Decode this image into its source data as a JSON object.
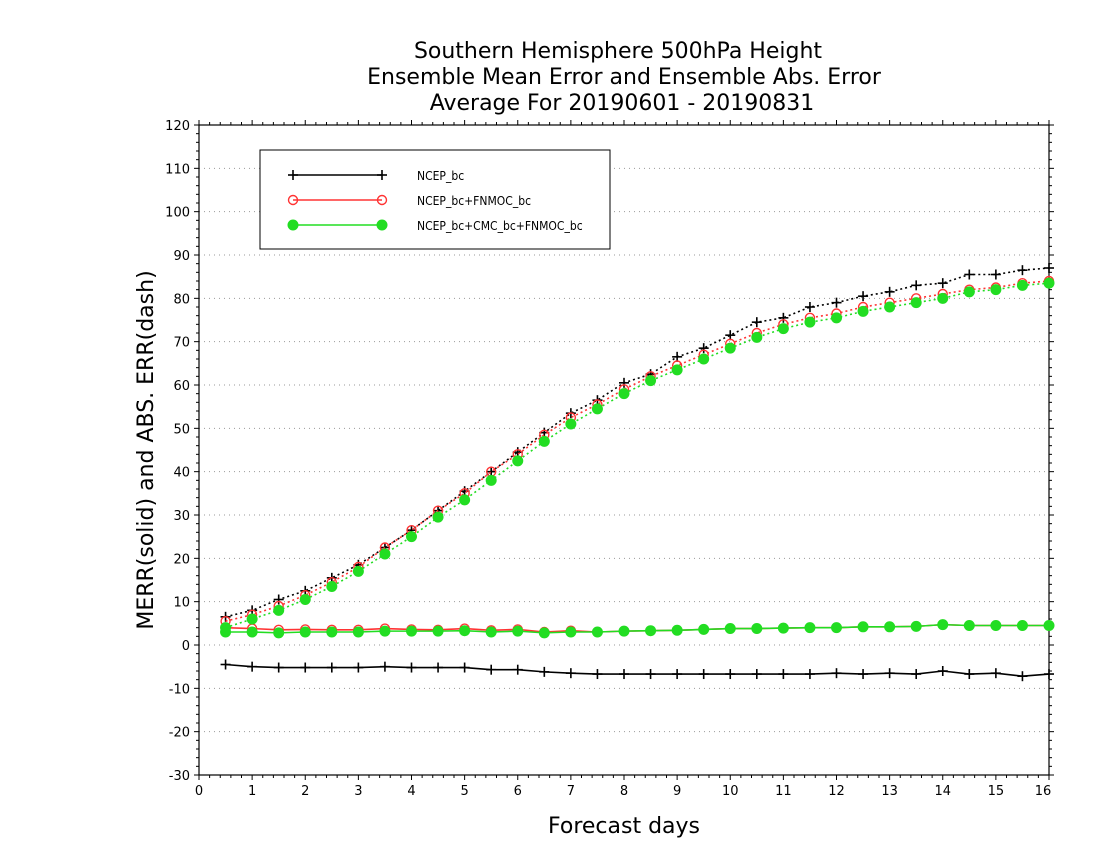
{
  "chart_data": {
    "type": "line",
    "title": [
      "Southern Hemisphere 500hPa Height",
      "Ensemble Mean Error and Ensemble Abs. Error",
      "Average For 20190601 - 20190831"
    ],
    "xlabel": "Forecast days",
    "ylabel": "MERR(solid) and ABS. ERR(dash)",
    "xlim": [
      0,
      16
    ],
    "ylim": [
      -30,
      120
    ],
    "xticks": [
      0,
      1,
      2,
      3,
      4,
      5,
      6,
      7,
      8,
      9,
      10,
      11,
      12,
      13,
      14,
      15,
      16
    ],
    "yticks": [
      -30,
      -20,
      -10,
      0,
      10,
      20,
      30,
      40,
      50,
      60,
      70,
      80,
      90,
      100,
      110,
      120
    ],
    "grid": "horizontal dotted",
    "legend_position": "top-left",
    "x": [
      0.5,
      1,
      1.5,
      2,
      2.5,
      3,
      3.5,
      4,
      4.5,
      5,
      5.5,
      6,
      6.5,
      7,
      7.5,
      8,
      8.5,
      9,
      9.5,
      10,
      10.5,
      11,
      11.5,
      12,
      12.5,
      13,
      13.5,
      14,
      14.5,
      15,
      15.5,
      16
    ],
    "series": [
      {
        "name": "NCEP_bc",
        "color": "#000000",
        "marker": "plus",
        "mean_error": [
          -4.5,
          -5,
          -5.2,
          -5.2,
          -5.2,
          -5.2,
          -5,
          -5.2,
          -5.2,
          -5.2,
          -5.7,
          -5.7,
          -6.2,
          -6.5,
          -6.7,
          -6.7,
          -6.7,
          -6.7,
          -6.7,
          -6.7,
          -6.7,
          -6.7,
          -6.7,
          -6.5,
          -6.7,
          -6.5,
          -6.7,
          -6,
          -6.7,
          -6.5,
          -7.2,
          -6.7
        ],
        "abs_error": [
          6.5,
          8,
          10.5,
          12.5,
          15.5,
          18.5,
          22.5,
          26.5,
          31,
          35.5,
          40,
          44.5,
          49,
          53.5,
          56.5,
          60.5,
          62.5,
          66.5,
          68.5,
          71.5,
          74.5,
          75.5,
          78,
          79,
          80.5,
          81.5,
          83,
          83.5,
          85.5,
          85.5,
          86.5,
          87
        ]
      },
      {
        "name": "NCEP_bc+FNMOC_bc",
        "color": "#ff3333",
        "marker": "open-circle",
        "mean_error": [
          4,
          3.8,
          3.5,
          3.6,
          3.5,
          3.5,
          3.8,
          3.6,
          3.5,
          3.8,
          3.4,
          3.6,
          3,
          3.3,
          3,
          3.2,
          3.3,
          3.4,
          3.6,
          3.8,
          3.8,
          3.9,
          4,
          4,
          4.2,
          4.2,
          4.3,
          4.7,
          4.5,
          4.5,
          4.5,
          4.5
        ],
        "abs_error": [
          5.5,
          7,
          9,
          11.5,
          14.5,
          18,
          22.5,
          26.5,
          31,
          35,
          40,
          44,
          48.5,
          52.5,
          55.5,
          59,
          62,
          64.5,
          67,
          69.5,
          72,
          74,
          75.5,
          76.5,
          78,
          79,
          80,
          81,
          82,
          82.5,
          83.5,
          84
        ]
      },
      {
        "name": "NCEP_bc+CMC_bc+FNMOC_bc",
        "color": "#22dd22",
        "marker": "filled-circle",
        "mean_error": [
          3,
          3,
          2.8,
          3,
          3,
          3,
          3.2,
          3.2,
          3.2,
          3.3,
          3,
          3.2,
          2.8,
          3,
          3,
          3.2,
          3.3,
          3.4,
          3.6,
          3.8,
          3.8,
          3.9,
          4,
          4,
          4.2,
          4.2,
          4.3,
          4.7,
          4.5,
          4.5,
          4.5,
          4.5
        ],
        "abs_error": [
          4,
          6,
          8,
          10.5,
          13.5,
          17,
          21,
          25,
          29.5,
          33.5,
          38,
          42.5,
          47,
          51,
          54.5,
          58,
          61,
          63.5,
          66,
          68.5,
          71,
          73,
          74.5,
          75.5,
          77,
          78,
          79,
          80,
          81.5,
          82,
          83,
          83.5
        ]
      }
    ]
  }
}
